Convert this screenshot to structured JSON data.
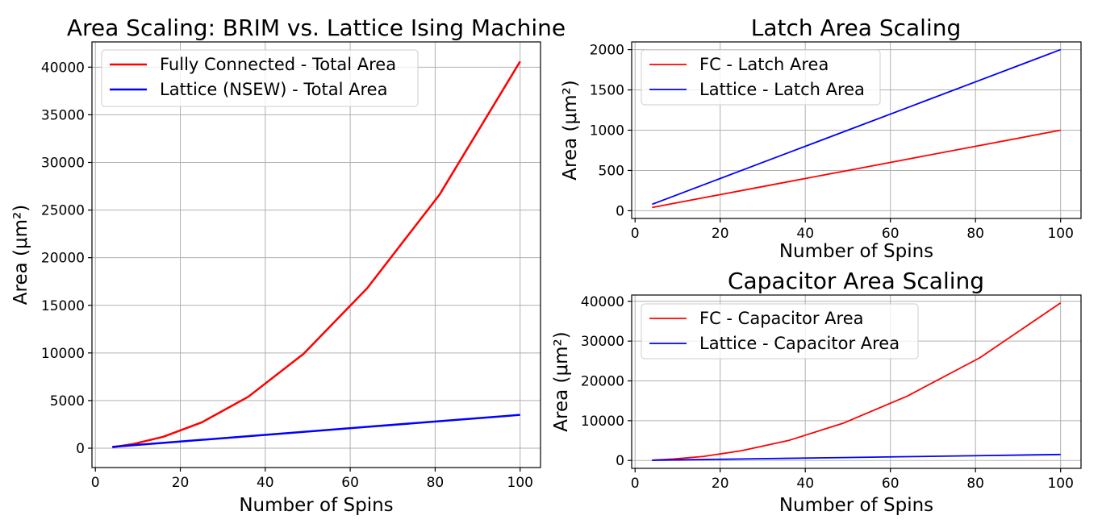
{
  "chart_data": [
    {
      "type": "line",
      "title": "Area Scaling: BRIM vs. Lattice Ising Machine",
      "xlabel": "Number of Spins",
      "ylabel": "Area (μm²)",
      "xlim": [
        -0.8,
        104.8
      ],
      "ylim": [
        -2030,
        42650
      ],
      "xticks": [
        0,
        20,
        40,
        60,
        80,
        100
      ],
      "yticks": [
        0,
        5000,
        10000,
        15000,
        20000,
        25000,
        30000,
        35000,
        40000
      ],
      "grid": true,
      "legend_position": "upper-left",
      "series": [
        {
          "name": "Fully Connected - Total Area",
          "color": "#ff0000",
          "x": [
            4,
            9,
            16,
            25,
            36,
            49,
            64,
            81,
            100
          ],
          "y": [
            100,
            450,
            1200,
            2700,
            5400,
            9900,
            16800,
            26600,
            40600
          ]
        },
        {
          "name": "Lattice (NSEW) - Total Area",
          "color": "#0000ff",
          "x": [
            4,
            9,
            16,
            25,
            36,
            49,
            64,
            81,
            100
          ],
          "y": [
            140,
            315,
            560,
            875,
            1260,
            1715,
            2240,
            2835,
            3500
          ]
        }
      ]
    },
    {
      "type": "line",
      "title": "Latch Area Scaling",
      "xlabel": "Number of Spins",
      "ylabel": "Area (μm²)",
      "xlim": [
        -0.8,
        104.8
      ],
      "ylim": [
        -96,
        2096
      ],
      "xticks": [
        0,
        20,
        40,
        60,
        80,
        100
      ],
      "yticks": [
        0,
        500,
        1000,
        1500,
        2000
      ],
      "grid": true,
      "legend_position": "upper-left",
      "series": [
        {
          "name": "FC - Latch Area",
          "color": "#ff0000",
          "x": [
            4,
            9,
            16,
            25,
            36,
            49,
            64,
            81,
            100
          ],
          "y": [
            40,
            90,
            160,
            250,
            360,
            490,
            640,
            810,
            1000
          ]
        },
        {
          "name": "Lattice - Latch Area",
          "color": "#0000ff",
          "x": [
            4,
            9,
            16,
            25,
            36,
            49,
            64,
            81,
            100
          ],
          "y": [
            80,
            180,
            320,
            500,
            720,
            980,
            1280,
            1620,
            2000
          ]
        }
      ]
    },
    {
      "type": "line",
      "title": "Capacitor Area Scaling",
      "xlabel": "Number of Spins",
      "ylabel": "Area (μm²)",
      "xlim": [
        -0.8,
        104.8
      ],
      "ylim": [
        -1980,
        41580
      ],
      "xticks": [
        0,
        20,
        40,
        60,
        80,
        100
      ],
      "yticks": [
        0,
        10000,
        20000,
        30000,
        40000
      ],
      "grid": true,
      "legend_position": "upper-left",
      "series": [
        {
          "name": "FC - Capacitor Area",
          "color": "#ff0000",
          "x": [
            4,
            9,
            16,
            25,
            36,
            49,
            64,
            81,
            100
          ],
          "y": [
            60,
            360,
            1000,
            2450,
            5000,
            9400,
            16200,
            25800,
            39600
          ]
        },
        {
          "name": "Lattice - Capacitor Area",
          "color": "#0000ff",
          "x": [
            4,
            9,
            16,
            25,
            36,
            49,
            64,
            81,
            100
          ],
          "y": [
            60,
            135,
            240,
            375,
            540,
            735,
            960,
            1215,
            1500
          ]
        }
      ]
    }
  ]
}
